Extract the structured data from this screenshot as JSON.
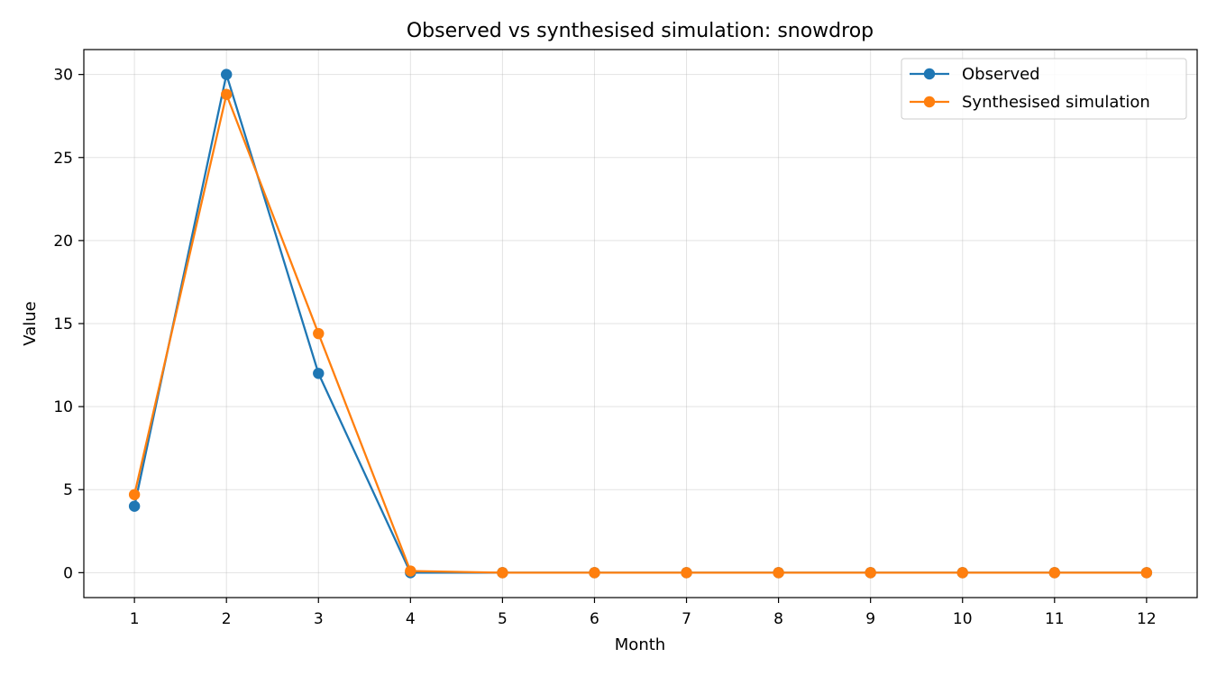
{
  "chart_data": {
    "type": "line",
    "title": "Observed vs synthesised simulation: snowdrop",
    "xlabel": "Month",
    "ylabel": "Value",
    "x": [
      1,
      2,
      3,
      4,
      5,
      6,
      7,
      8,
      9,
      10,
      11,
      12
    ],
    "xticks": [
      "1",
      "2",
      "3",
      "4",
      "5",
      "6",
      "7",
      "8",
      "9",
      "10",
      "11",
      "12"
    ],
    "yticks": [
      "0",
      "5",
      "10",
      "15",
      "20",
      "25",
      "30"
    ],
    "xlim": [
      0.45,
      12.55
    ],
    "ylim": [
      -1.5,
      31.5
    ],
    "grid": true,
    "legend_position": "top-right",
    "series": [
      {
        "name": "Observed",
        "color": "#1f77b4",
        "marker": "circle",
        "values": [
          4,
          30,
          12,
          0,
          0,
          0,
          0,
          0,
          0,
          0,
          0,
          0
        ]
      },
      {
        "name": "Synthesised simulation",
        "color": "#ff7f0e",
        "marker": "circle",
        "values": [
          4.7,
          28.8,
          14.4,
          0.1,
          0,
          0,
          0,
          0,
          0,
          0,
          0,
          0
        ]
      }
    ]
  }
}
